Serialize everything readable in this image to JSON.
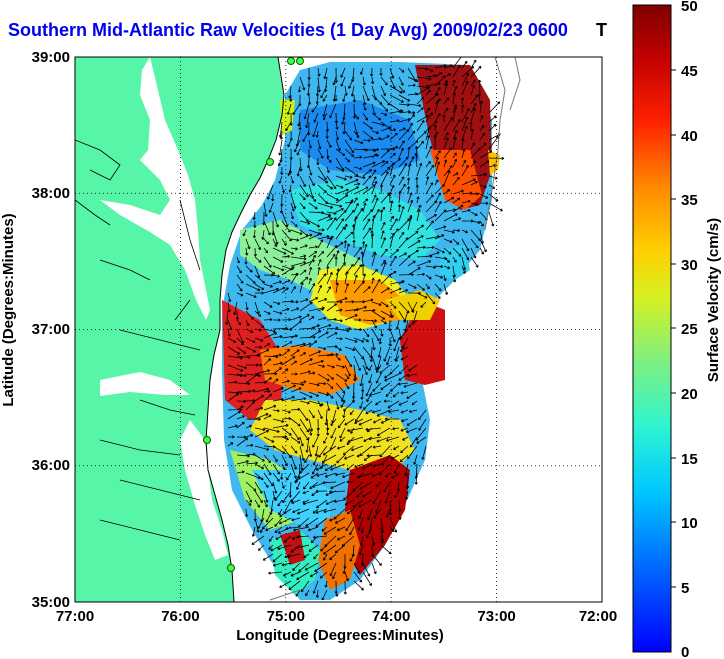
{
  "title": "Southern Mid-Atlantic Raw Velocities (1 Day Avg) 2009/02/23 0600",
  "title_suffix": "T",
  "x_axis": {
    "label": "Longitude (Degrees:Minutes)",
    "ticks": [
      "77:00",
      "76:00",
      "75:00",
      "74:00",
      "73:00",
      "72:00"
    ]
  },
  "y_axis": {
    "label": "Latitude (Degrees:Minutes)",
    "ticks": [
      "39:00",
      "38:00",
      "37:00",
      "36:00",
      "35:00"
    ]
  },
  "colorbar": {
    "label": "Surface Velocity (cm/s)",
    "ticks": [
      "50",
      "45",
      "40",
      "35",
      "30",
      "25",
      "20",
      "15",
      "10",
      "5",
      "0"
    ],
    "min": 0,
    "max": 50,
    "colormap": "jet"
  },
  "colors": {
    "land": "#57f5a8",
    "title": "#0000ee",
    "grid": "#000000"
  },
  "stations": 5
}
